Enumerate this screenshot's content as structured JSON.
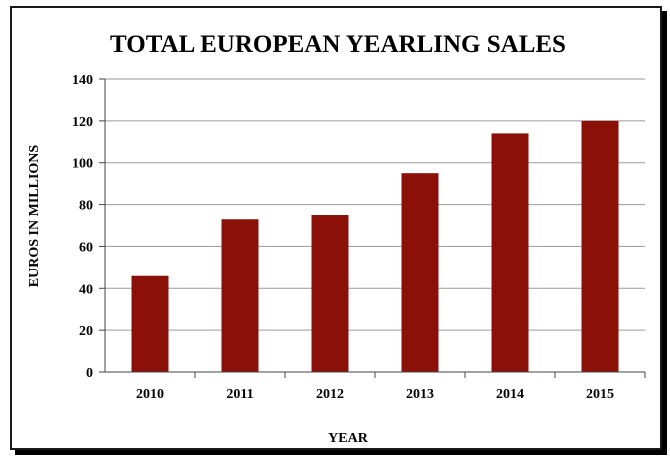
{
  "chart_data": {
    "type": "bar",
    "title": "TOTAL EUROPEAN YEARLING SALES",
    "xlabel": "YEAR",
    "ylabel": "EUROS IN MILLIONS",
    "categories": [
      "2010",
      "2011",
      "2012",
      "2013",
      "2014",
      "2015"
    ],
    "values": [
      46,
      73,
      75,
      95,
      114,
      120
    ],
    "ylim": [
      0,
      140
    ],
    "yticks": [
      "0",
      "20",
      "40",
      "60",
      "80",
      "100",
      "120",
      "140"
    ],
    "grid": true,
    "bar_color": "#8b1108"
  }
}
